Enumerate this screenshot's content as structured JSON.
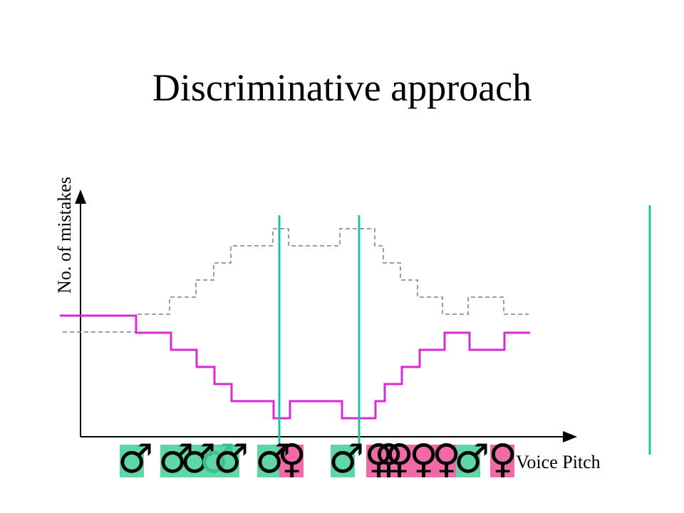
{
  "title": "Discriminative approach",
  "axes": {
    "y_label": "No. of mistakes",
    "x_label": "Voice Pitch"
  },
  "colors": {
    "male": "#5fd6a8",
    "female": "#f06aa8",
    "threshold_line": "#1bc4a4",
    "solid_curve": "#d92ad9",
    "dashed_curve": "#7f7f7f"
  },
  "symbols": {
    "male": "♂",
    "female": "♀"
  },
  "samples": [
    {
      "sex": "male",
      "symbol": "♂"
    },
    {
      "sex": "male",
      "symbol": "♂"
    },
    {
      "sex": "male",
      "symbol": "♂"
    },
    {
      "sex": "male",
      "symbol": "♂"
    },
    {
      "sex": "male",
      "symbol": "♂"
    },
    {
      "sex": "male",
      "symbol": "♂"
    },
    {
      "sex": "female",
      "symbol": "♀"
    },
    {
      "sex": "male",
      "symbol": "♂"
    },
    {
      "sex": "female",
      "symbol": "♀"
    },
    {
      "sex": "female",
      "symbol": "♀"
    },
    {
      "sex": "female",
      "symbol": "♀"
    },
    {
      "sex": "female",
      "symbol": "♀"
    },
    {
      "sex": "female",
      "symbol": "♀"
    },
    {
      "sex": "male",
      "symbol": "♂"
    },
    {
      "sex": "female",
      "symbol": "♀"
    }
  ]
}
